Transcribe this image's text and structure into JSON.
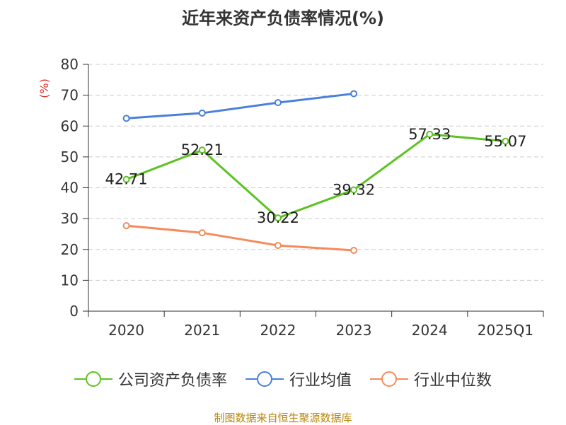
{
  "title": "近年来资产负债率情况(%)",
  "source": "制图数据来自恒生聚源数据库",
  "chart_data": {
    "type": "line",
    "categories": [
      "2020",
      "2021",
      "2022",
      "2023",
      "2024",
      "2025Q1"
    ],
    "y_axis": {
      "unit_label": "(%)",
      "ylim": [
        0,
        80
      ],
      "ticks": [
        "0",
        "10",
        "20",
        "30",
        "40",
        "50",
        "60",
        "70",
        "80"
      ]
    },
    "grid": "horizontal-dashed",
    "legend_position": "bottom",
    "series": [
      {
        "name": "公司资产负债率",
        "color": "#5dc221",
        "values": [
          42.71,
          52.21,
          30.22,
          39.32,
          57.33,
          55.07
        ],
        "data_labels": [
          "42.71",
          "52.21",
          "30.22",
          "39.32",
          "57.33",
          "55.07"
        ]
      },
      {
        "name": "行业均值",
        "color": "#4a7fdb",
        "values": [
          62.5,
          64.2,
          67.6,
          70.5,
          null,
          null
        ]
      },
      {
        "name": "行业中位数",
        "color": "#f58b5a",
        "values": [
          27.7,
          25.4,
          21.3,
          19.7,
          null,
          null
        ]
      }
    ]
  }
}
